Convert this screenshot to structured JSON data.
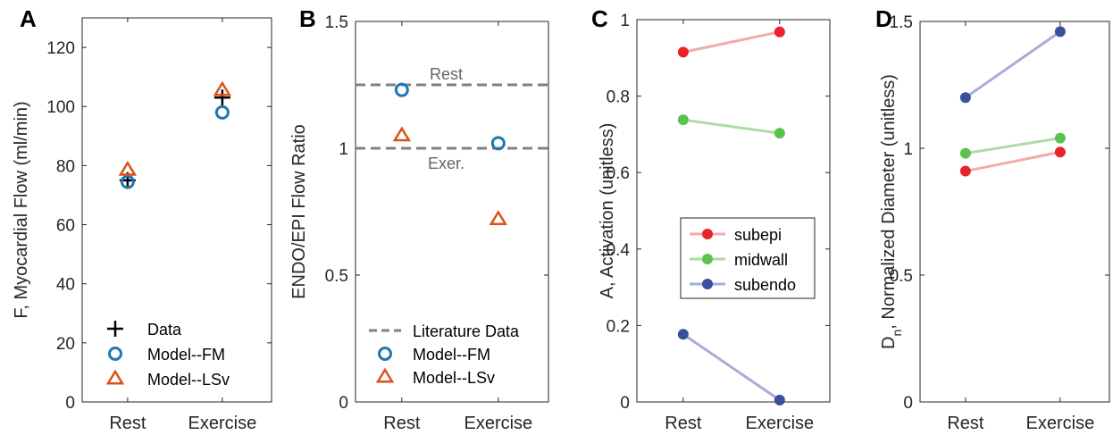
{
  "colors": {
    "data": "#000000",
    "model_fm": "#1f77b4",
    "model_lsv": "#d95319",
    "literature": "#808080",
    "subepi": "#e8232a",
    "subepi_line": "#f4a9ad",
    "midwall": "#5bc24f",
    "midwall_line": "#aedca6",
    "subendo": "#3a4fa0",
    "subendo_line": "#a9acd8"
  },
  "chart_data": [
    {
      "panel": "A",
      "type": "scatter",
      "categories": [
        "Rest",
        "Exercise"
      ],
      "ylabel": "F, Myocardial Flow (ml/min)",
      "ylim": [
        0,
        130
      ],
      "yticks": [
        0,
        20,
        40,
        60,
        80,
        100,
        120
      ],
      "ytick_labels": [
        "0",
        "20",
        "40",
        "60",
        "80",
        "100",
        "120"
      ],
      "series": [
        {
          "name": "Data",
          "marker": "plus",
          "color": "#000000",
          "values": [
            75,
            103
          ]
        },
        {
          "name": "Model--FM",
          "marker": "circle",
          "color": "#1f77b4",
          "values": [
            74.5,
            98
          ]
        },
        {
          "name": "Model--LSv",
          "marker": "triangle",
          "color": "#d95319",
          "values": [
            78.5,
            105.5
          ]
        }
      ],
      "legend": "bottom-left",
      "grid": false
    },
    {
      "panel": "B",
      "type": "scatter",
      "categories": [
        "Rest",
        "Exercise"
      ],
      "ylabel": "ENDO/EPI Flow Ratio",
      "ylim": [
        0,
        1.5
      ],
      "yticks": [
        0,
        0.5,
        1,
        1.5
      ],
      "ytick_labels": [
        "0",
        "0.5",
        "1",
        "1.5"
      ],
      "reference_lines": [
        {
          "label": "Rest",
          "value": 1.25
        },
        {
          "label": "Exer.",
          "value": 1.0
        }
      ],
      "series": [
        {
          "name": "Literature Data",
          "marker": "dashed-line",
          "color": "#808080",
          "values": []
        },
        {
          "name": "Model--FM",
          "marker": "circle",
          "color": "#1f77b4",
          "values": [
            1.23,
            1.02
          ]
        },
        {
          "name": "Model--LSv",
          "marker": "triangle",
          "color": "#d95319",
          "values": [
            1.05,
            0.72
          ]
        }
      ],
      "legend": "bottom-right",
      "grid": false
    },
    {
      "panel": "C",
      "type": "line",
      "categories": [
        "Rest",
        "Exercise"
      ],
      "ylabel": "A, Activation (unitless)",
      "ylim": [
        0,
        1
      ],
      "yticks": [
        0,
        0.2,
        0.4,
        0.6,
        0.8,
        1
      ],
      "ytick_labels": [
        "0",
        "0.2",
        "0.4",
        "0.6",
        "0.8",
        "1"
      ],
      "series": [
        {
          "name": "subepi",
          "color": "#e8232a",
          "line_color": "#f4a9ad",
          "values": [
            0.915,
            0.968
          ]
        },
        {
          "name": "midwall",
          "color": "#5bc24f",
          "line_color": "#aedca6",
          "values": [
            0.738,
            0.703
          ]
        },
        {
          "name": "subendo",
          "color": "#3a4fa0",
          "line_color": "#a9acd8",
          "values": [
            0.177,
            0.005
          ]
        }
      ],
      "legend": "center",
      "grid": false
    },
    {
      "panel": "D",
      "type": "line",
      "categories": [
        "Rest",
        "Exercise"
      ],
      "ylabel_main": "D",
      "ylabel_sub": "n",
      "ylabel_rest": ", Normalized Diameter (unitless)",
      "ylim": [
        0,
        1.5
      ],
      "yticks": [
        0,
        0.5,
        1,
        1.5
      ],
      "ytick_labels": [
        "0",
        "0.5",
        "1",
        "1.5"
      ],
      "series": [
        {
          "name": "subepi",
          "color": "#e8232a",
          "line_color": "#f4a9ad",
          "values": [
            0.91,
            0.985
          ]
        },
        {
          "name": "midwall",
          "color": "#5bc24f",
          "line_color": "#aedca6",
          "values": [
            0.98,
            1.04
          ]
        },
        {
          "name": "subendo",
          "color": "#3a4fa0",
          "line_color": "#a9acd8",
          "values": [
            1.2,
            1.46
          ]
        }
      ],
      "grid": false
    }
  ]
}
